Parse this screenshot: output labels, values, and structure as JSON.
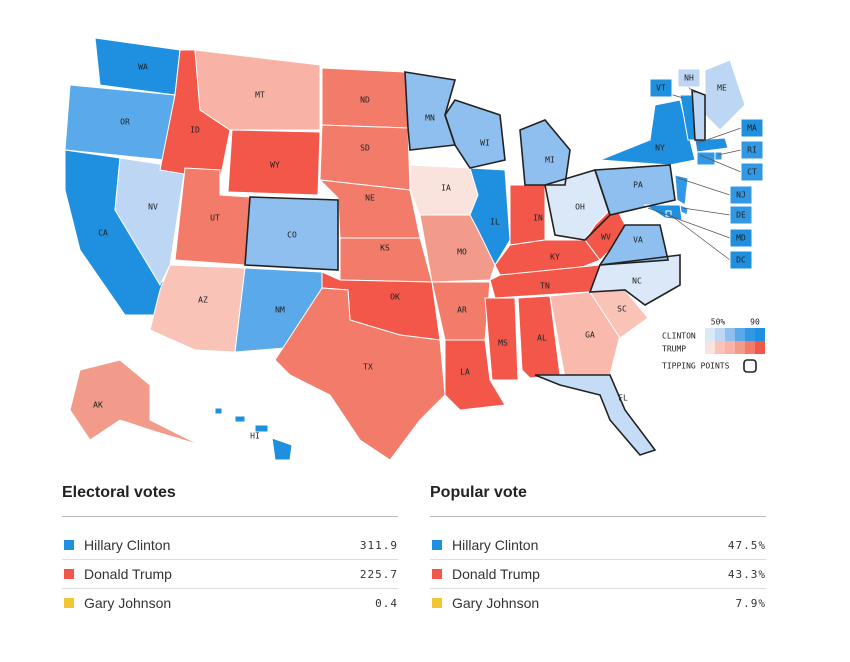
{
  "map": {
    "states": [
      {
        "abbr": "WA",
        "color": "#1f8fe0"
      },
      {
        "abbr": "OR",
        "color": "#5aa9ea"
      },
      {
        "abbr": "CA",
        "color": "#1f8fe0"
      },
      {
        "abbr": "NV",
        "color": "#bcd6f3"
      },
      {
        "abbr": "ID",
        "color": "#f2574a"
      },
      {
        "abbr": "MT",
        "color": "#f8b3a6"
      },
      {
        "abbr": "WY",
        "color": "#f2574a"
      },
      {
        "abbr": "UT",
        "color": "#f27b69"
      },
      {
        "abbr": "AZ",
        "color": "#f9c3b8"
      },
      {
        "abbr": "CO",
        "color": "#8ebfee",
        "tipping": true
      },
      {
        "abbr": "NM",
        "color": "#5aa9ea"
      },
      {
        "abbr": "ND",
        "color": "#f27b69"
      },
      {
        "abbr": "SD",
        "color": "#f27b69"
      },
      {
        "abbr": "NE",
        "color": "#f27b69"
      },
      {
        "abbr": "KS",
        "color": "#f27b69"
      },
      {
        "abbr": "OK",
        "color": "#f2574a"
      },
      {
        "abbr": "TX",
        "color": "#f27b69"
      },
      {
        "abbr": "MN",
        "color": "#8ebfee",
        "tipping": true
      },
      {
        "abbr": "IA",
        "color": "#fbe3dd"
      },
      {
        "abbr": "MO",
        "color": "#f29b8a"
      },
      {
        "abbr": "AR",
        "color": "#f27b69"
      },
      {
        "abbr": "LA",
        "color": "#f2574a"
      },
      {
        "abbr": "WI",
        "color": "#8ebfee",
        "tipping": true
      },
      {
        "abbr": "IL",
        "color": "#1f8fe0"
      },
      {
        "abbr": "MI",
        "color": "#8ebfee",
        "tipping": true
      },
      {
        "abbr": "IN",
        "color": "#f2574a"
      },
      {
        "abbr": "OH",
        "color": "#dbe8f8",
        "tipping": true
      },
      {
        "abbr": "KY",
        "color": "#f2574a"
      },
      {
        "abbr": "TN",
        "color": "#f2574a"
      },
      {
        "abbr": "MS",
        "color": "#f2574a"
      },
      {
        "abbr": "AL",
        "color": "#f2574a"
      },
      {
        "abbr": "GA",
        "color": "#f9b9ac"
      },
      {
        "abbr": "SC",
        "color": "#f9c3b8"
      },
      {
        "abbr": "NC",
        "color": "#dbe8f8",
        "tipping": true
      },
      {
        "abbr": "VA",
        "color": "#8ebfee",
        "tipping": true
      },
      {
        "abbr": "WV",
        "color": "#f2574a"
      },
      {
        "abbr": "PA",
        "color": "#8ebfee",
        "tipping": true
      },
      {
        "abbr": "NY",
        "color": "#1f8fe0"
      },
      {
        "abbr": "FL",
        "color": "#c4dcf5",
        "tipping": true
      },
      {
        "abbr": "ME",
        "color": "#bcd6f3"
      },
      {
        "abbr": "VT",
        "color": "#1f8fe0"
      },
      {
        "abbr": "NH",
        "color": "#bcd6f3",
        "tipping": true
      },
      {
        "abbr": "MA",
        "color": "#1f8fe0"
      },
      {
        "abbr": "RI",
        "color": "#3398e4"
      },
      {
        "abbr": "CT",
        "color": "#3398e4"
      },
      {
        "abbr": "NJ",
        "color": "#3398e4"
      },
      {
        "abbr": "DE",
        "color": "#3398e4"
      },
      {
        "abbr": "MD",
        "color": "#1f8fe0"
      },
      {
        "abbr": "DC",
        "color": "#1f8fe0"
      },
      {
        "abbr": "AK",
        "color": "#f29b8a"
      },
      {
        "abbr": "HI",
        "color": "#1f8fe0"
      }
    ],
    "legend": {
      "min_label": "50%",
      "max_label": "90",
      "clinton": "CLINTON",
      "trump": "TRUMP",
      "tipping": "TIPPING POINTS"
    }
  },
  "tables": [
    {
      "title": "Electoral votes",
      "rows": [
        {
          "name": "Hillary Clinton",
          "color": "#1f8fe0",
          "value": "311.9"
        },
        {
          "name": "Donald Trump",
          "color": "#f2574a",
          "value": "225.7"
        },
        {
          "name": "Gary Johnson",
          "color": "#f2c531",
          "value": "0.4"
        }
      ]
    },
    {
      "title": "Popular vote",
      "rows": [
        {
          "name": "Hillary Clinton",
          "color": "#1f8fe0",
          "value": "47.5%"
        },
        {
          "name": "Donald Trump",
          "color": "#f2574a",
          "value": "43.3%"
        },
        {
          "name": "Gary Johnson",
          "color": "#f2c531",
          "value": "7.9%"
        }
      ]
    }
  ]
}
